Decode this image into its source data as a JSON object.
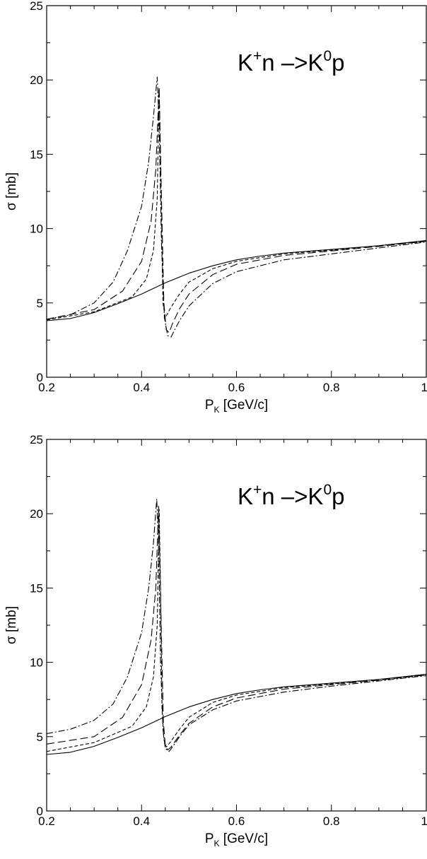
{
  "chart_data": [
    {
      "type": "line",
      "panel": "top",
      "annotation": {
        "base1": "K",
        "sup1": "+",
        "mid": "n –>K",
        "sup2": "0",
        "end": "p"
      },
      "xlabel": {
        "base": "P",
        "sub": "K",
        "rest": " [GeV/c]"
      },
      "ylabel": "σ [mb]",
      "xlim": [
        0.2,
        1.0
      ],
      "ylim": [
        0,
        25
      ],
      "xticks": [
        "0.2",
        "0.4",
        "0.6",
        "0.8",
        "1"
      ],
      "yticks": [
        "0",
        "5",
        "10",
        "15",
        "20",
        "25"
      ],
      "grid": false,
      "series": [
        {
          "style": "solid",
          "x": [
            0.2,
            0.25,
            0.3,
            0.35,
            0.4,
            0.45,
            0.5,
            0.55,
            0.6,
            0.65,
            0.7,
            0.8,
            0.9,
            1.0
          ],
          "y": [
            3.8,
            3.95,
            4.35,
            4.95,
            5.6,
            6.35,
            7.0,
            7.5,
            7.9,
            8.15,
            8.35,
            8.6,
            8.85,
            9.2
          ]
        },
        {
          "style": "short-dash",
          "x": [
            0.2,
            0.3,
            0.38,
            0.41,
            0.425,
            0.433,
            0.437,
            0.44,
            0.445,
            0.45,
            0.46,
            0.48,
            0.5,
            0.55,
            0.6,
            0.7,
            0.8,
            0.9,
            1.0
          ],
          "y": [
            3.85,
            4.4,
            5.4,
            6.6,
            8.5,
            12.0,
            19.5,
            14.0,
            5.0,
            4.0,
            4.6,
            5.6,
            6.4,
            7.3,
            7.8,
            8.3,
            8.55,
            8.85,
            9.15
          ]
        },
        {
          "style": "long-dash",
          "x": [
            0.2,
            0.3,
            0.36,
            0.4,
            0.42,
            0.43,
            0.437,
            0.442,
            0.447,
            0.452,
            0.458,
            0.465,
            0.48,
            0.5,
            0.55,
            0.6,
            0.7,
            0.8,
            0.9,
            1.0
          ],
          "y": [
            3.9,
            4.55,
            5.8,
            7.8,
            10.5,
            14.0,
            19.5,
            12.0,
            5.0,
            3.2,
            3.0,
            3.6,
            4.6,
            5.6,
            6.9,
            7.6,
            8.2,
            8.5,
            8.8,
            9.15
          ]
        },
        {
          "style": "dash-dot",
          "x": [
            0.2,
            0.25,
            0.3,
            0.34,
            0.37,
            0.4,
            0.415,
            0.425,
            0.433,
            0.437,
            0.442,
            0.448,
            0.455,
            0.462,
            0.47,
            0.48,
            0.5,
            0.55,
            0.6,
            0.7,
            0.8,
            0.9,
            1.0
          ],
          "y": [
            3.9,
            4.2,
            5.0,
            6.4,
            8.5,
            11.5,
            14.5,
            17.5,
            20.2,
            17.0,
            9.0,
            4.0,
            2.8,
            2.7,
            3.2,
            3.8,
            4.8,
            6.3,
            7.1,
            7.9,
            8.3,
            8.7,
            9.1
          ]
        }
      ]
    },
    {
      "type": "line",
      "panel": "bottom",
      "annotation": {
        "base1": "K",
        "sup1": "+",
        "mid": "n –>K",
        "sup2": "0",
        "end": "p"
      },
      "xlabel": {
        "base": "P",
        "sub": "K",
        "rest": " [GeV/c]"
      },
      "ylabel": "σ [mb]",
      "xlim": [
        0.2,
        1.0
      ],
      "ylim": [
        0,
        25
      ],
      "xticks": [
        "0.2",
        "0.4",
        "0.6",
        "0.8",
        "1"
      ],
      "yticks": [
        "0",
        "5",
        "10",
        "15",
        "20",
        "25"
      ],
      "grid": false,
      "series": [
        {
          "style": "solid",
          "x": [
            0.2,
            0.25,
            0.3,
            0.35,
            0.4,
            0.45,
            0.5,
            0.55,
            0.6,
            0.65,
            0.7,
            0.8,
            0.9,
            1.0
          ],
          "y": [
            3.8,
            3.95,
            4.35,
            4.95,
            5.6,
            6.35,
            7.0,
            7.5,
            7.9,
            8.15,
            8.35,
            8.6,
            8.85,
            9.2
          ]
        },
        {
          "style": "short-dash",
          "x": [
            0.2,
            0.3,
            0.38,
            0.41,
            0.425,
            0.433,
            0.437,
            0.44,
            0.443,
            0.447,
            0.452,
            0.46,
            0.48,
            0.5,
            0.55,
            0.6,
            0.7,
            0.8,
            0.9,
            1.0
          ],
          "y": [
            4.0,
            4.6,
            5.7,
            7.0,
            9.0,
            12.5,
            20.3,
            15.0,
            7.0,
            4.8,
            4.3,
            4.6,
            5.5,
            6.3,
            7.3,
            7.8,
            8.3,
            8.55,
            8.85,
            9.15
          ]
        },
        {
          "style": "long-dash",
          "x": [
            0.2,
            0.3,
            0.36,
            0.4,
            0.42,
            0.43,
            0.436,
            0.441,
            0.446,
            0.45,
            0.455,
            0.462,
            0.48,
            0.5,
            0.55,
            0.6,
            0.7,
            0.8,
            0.9,
            1.0
          ],
          "y": [
            4.5,
            5.0,
            6.3,
            8.5,
            11.5,
            15.0,
            20.5,
            13.0,
            6.0,
            4.4,
            4.1,
            4.3,
            5.1,
            5.9,
            7.0,
            7.6,
            8.2,
            8.5,
            8.8,
            9.15
          ]
        },
        {
          "style": "dash-dot",
          "x": [
            0.2,
            0.25,
            0.3,
            0.34,
            0.37,
            0.4,
            0.415,
            0.425,
            0.432,
            0.436,
            0.44,
            0.445,
            0.45,
            0.458,
            0.465,
            0.48,
            0.5,
            0.55,
            0.6,
            0.7,
            0.8,
            0.9,
            1.0
          ],
          "y": [
            5.2,
            5.5,
            6.1,
            7.2,
            9.0,
            12.0,
            15.0,
            18.0,
            21.0,
            18.0,
            10.0,
            5.5,
            4.2,
            4.0,
            4.3,
            5.0,
            5.8,
            6.8,
            7.4,
            8.0,
            8.4,
            8.75,
            9.1
          ]
        }
      ]
    }
  ]
}
